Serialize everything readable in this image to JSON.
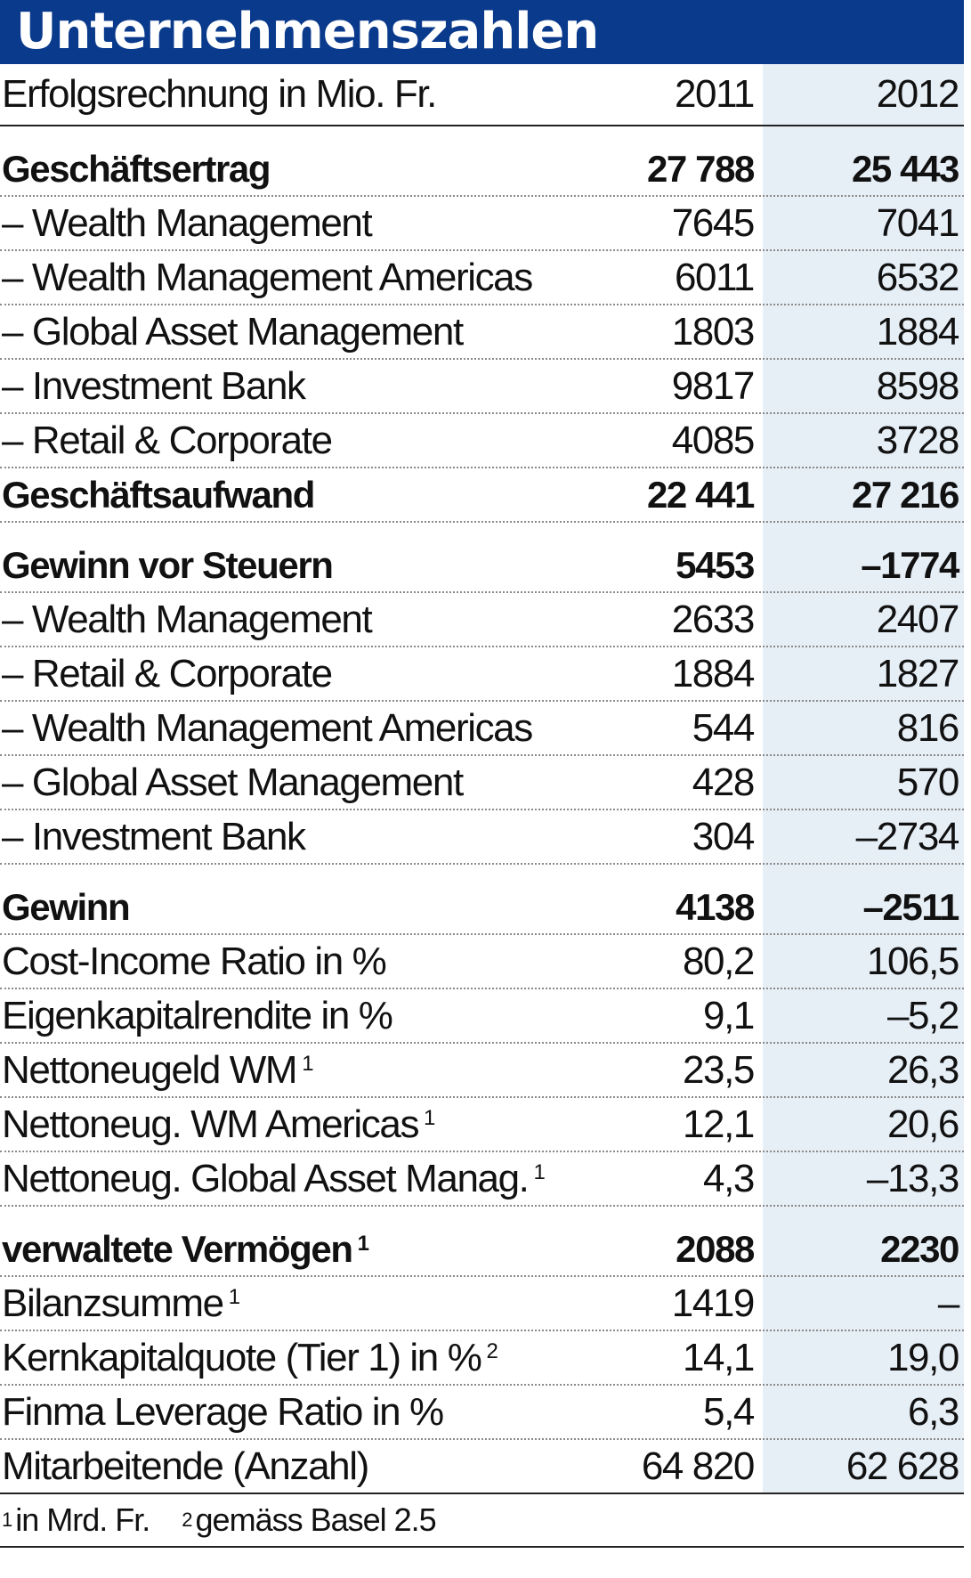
{
  "title": "Unternehmenszahlen",
  "header": {
    "label": "Erfolgsrechnung in Mio. Fr.",
    "y1": "2011",
    "y2": "2012"
  },
  "rows": [
    {
      "label": "Geschäftsertrag",
      "v1": "27 788",
      "v2": "25 443"
    },
    {
      "label": "– Wealth Management",
      "v1": "7645",
      "v2": "7041"
    },
    {
      "label": "– Wealth Management Americas",
      "v1": "6011",
      "v2": "6532"
    },
    {
      "label": "– Global Asset Management",
      "v1": "1803",
      "v2": "1884"
    },
    {
      "label": "– Investment Bank",
      "v1": "9817",
      "v2": "8598"
    },
    {
      "label": "– Retail & Corporate",
      "v1": "4085",
      "v2": "3728"
    },
    {
      "label": "Geschäftsaufwand",
      "v1": "22 441",
      "v2": "27 216"
    },
    {
      "label": "Gewinn vor Steuern",
      "v1": "5453",
      "v2": "–1774"
    },
    {
      "label": "– Wealth Management",
      "v1": "2633",
      "v2": "2407"
    },
    {
      "label": "– Retail & Corporate",
      "v1": "1884",
      "v2": "1827"
    },
    {
      "label": "– Wealth Management Americas",
      "v1": "544",
      "v2": "816"
    },
    {
      "label": "– Global Asset Management",
      "v1": "428",
      "v2": "570"
    },
    {
      "label": "– Investment Bank",
      "v1": "304",
      "v2": "–2734"
    },
    {
      "label": "Gewinn",
      "v1": "4138",
      "v2": "–2511"
    },
    {
      "label": "Cost-Income Ratio in %",
      "v1": "80,2",
      "v2": "106,5"
    },
    {
      "label": "Eigenkapitalrendite in %",
      "v1": "9,1",
      "v2": "–5,2"
    },
    {
      "label": "Nettoneugeld WM",
      "sup": "1",
      "v1": "23,5",
      "v2": "26,3"
    },
    {
      "label": "Nettoneug. WM Americas",
      "sup": "1",
      "v1": "12,1",
      "v2": "20,6"
    },
    {
      "label": "Nettoneug. Global Asset Manag.",
      "sup": "1",
      "v1": "4,3",
      "v2": "–13,3"
    },
    {
      "label": "verwaltete Vermögen",
      "sup": "1",
      "v1": "2088",
      "v2": "2230"
    },
    {
      "label": "Bilanzsumme",
      "sup": "1",
      "v1": "1419",
      "v2": "–"
    },
    {
      "label": "Kernkapitalquote (Tier 1) in %",
      "sup": "2",
      "v1": "14,1",
      "v2": "19,0"
    },
    {
      "label": "Finma Leverage Ratio in %",
      "v1": "5,4",
      "v2": "6,3"
    },
    {
      "label": "Mitarbeitende (Anzahl)",
      "v1": "64 820",
      "v2": "62 628"
    }
  ],
  "footnotes": [
    {
      "mark": "1",
      "text": "in Mrd. Fr."
    },
    {
      "mark": "2",
      "text": "gemäss Basel 2.5"
    }
  ]
}
